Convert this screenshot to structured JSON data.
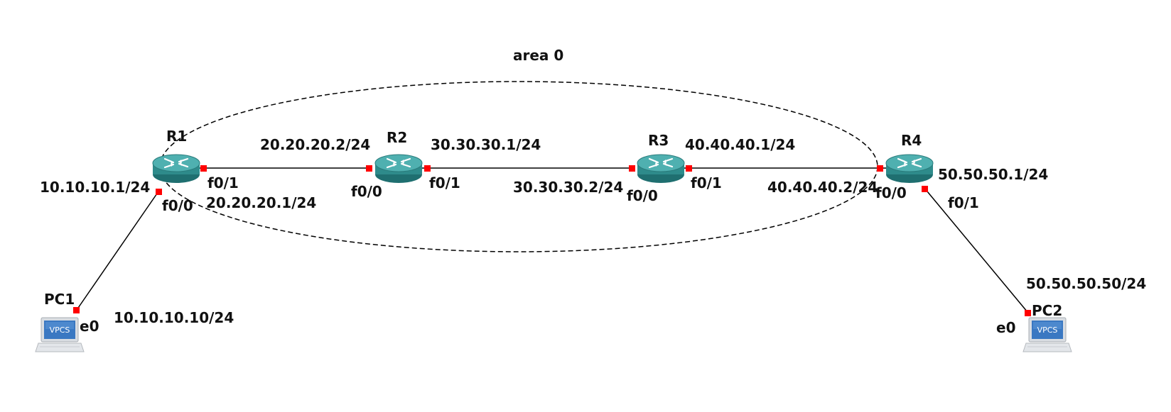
{
  "area": {
    "label": "area 0"
  },
  "colors": {
    "router_body": "#2e8b8b",
    "router_top": "#4fb0b0",
    "port": "#ff0000",
    "link": "#000000",
    "screen": "#3a78c2"
  },
  "icons": {
    "router": "router-icon",
    "pc": "vpcs-computer-icon"
  },
  "nodes": {
    "r1": {
      "name": "R1"
    },
    "r2": {
      "name": "R2"
    },
    "r3": {
      "name": "R3"
    },
    "r4": {
      "name": "R4"
    },
    "pc1": {
      "name": "PC1",
      "screen_text": "VPCS"
    },
    "pc2": {
      "name": "PC2",
      "screen_text": "VPCS"
    }
  },
  "interfaces": {
    "r1_f0_0": "f0/0",
    "r1_f0_1": "f0/1",
    "r2_f0_0": "f0/0",
    "r2_f0_1": "f0/1",
    "r3_f0_0": "f0/0",
    "r3_f0_1": "f0/1",
    "r4_f0_0": "f0/0",
    "r4_f0_1": "f0/1",
    "pc1_e0": "e0",
    "pc2_e0": "e0"
  },
  "addresses": {
    "r1_f0_0": "10.10.10.1/24",
    "r1_f0_1": "20.20.20.1/24",
    "r2_f0_0": "20.20.20.2/24",
    "r2_f0_1": "30.30.30.1/24",
    "r3_f0_0": "30.30.30.2/24",
    "r3_f0_1": "40.40.40.1/24",
    "r4_f0_0": "40.40.40.2/24",
    "r4_f0_1": "50.50.50.1/24",
    "pc1": "10.10.10.10/24",
    "pc2": "50.50.50.50/24"
  }
}
